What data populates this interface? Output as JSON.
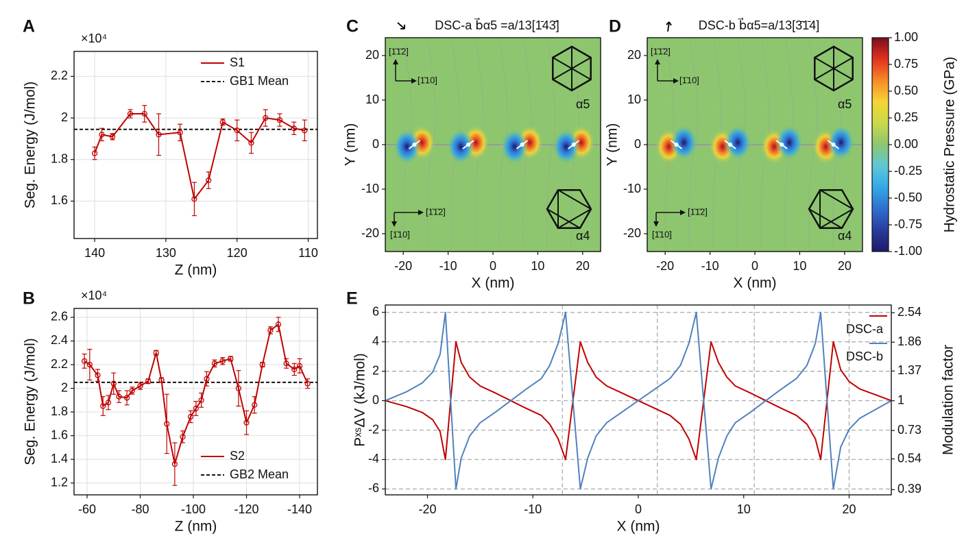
{
  "chart_data": [
    {
      "type": "errorbar_line",
      "label": "A",
      "multiplier": "×10⁴",
      "xlabel": "Z (nm)",
      "ylabel": "Seg. Energy (J/mol)",
      "x": [
        140,
        139,
        137.5,
        135,
        133,
        131,
        128,
        126,
        124,
        122,
        120,
        118,
        116,
        114,
        112,
        110.5
      ],
      "series": [
        {
          "name": "S1",
          "color": "#c00000",
          "values": [
            1.83,
            1.92,
            1.91,
            2.02,
            2.02,
            1.92,
            1.93,
            1.61,
            1.7,
            1.98,
            1.94,
            1.88,
            2.0,
            1.99,
            1.95,
            1.94
          ],
          "errors": [
            0.03,
            0.03,
            0.015,
            0.02,
            0.04,
            0.1,
            0.04,
            0.08,
            0.04,
            0.015,
            0.05,
            0.05,
            0.04,
            0.03,
            0.03,
            0.05
          ]
        }
      ],
      "reference": {
        "name": "GB1 Mean",
        "value": 1.945,
        "color": "#111111"
      },
      "xlim": [
        142.9,
        108.7
      ],
      "xticks": [
        140,
        130,
        120,
        110
      ],
      "ylim": [
        1.42,
        2.32
      ],
      "yticks": [
        1.6,
        1.8,
        2,
        2.2
      ],
      "grid": true,
      "legend": "upper right"
    },
    {
      "type": "errorbar_line",
      "label": "B",
      "multiplier": "×10⁴",
      "xlabel": "Z (nm)",
      "ylabel": "Seg. Energy (J/mol)",
      "x": [
        -59,
        -61,
        -64,
        -66,
        -68,
        -70,
        -72,
        -75,
        -77,
        -80,
        -83,
        -86,
        -88,
        -90,
        -93,
        -96,
        -99,
        -101,
        -103,
        -105,
        -108,
        -111,
        -114,
        -117,
        -120,
        -123,
        -126,
        -129,
        -132,
        -135,
        -138,
        -140,
        -143
      ],
      "series": [
        {
          "name": "S2",
          "color": "#c00000",
          "values": [
            2.23,
            2.2,
            2.11,
            1.85,
            1.88,
            2.04,
            1.93,
            1.92,
            1.98,
            2.02,
            2.06,
            2.3,
            2.07,
            1.7,
            1.36,
            1.59,
            1.76,
            1.83,
            1.9,
            2.08,
            2.21,
            2.23,
            2.25,
            2.0,
            1.71,
            1.86,
            2.2,
            2.49,
            2.54,
            2.21,
            2.16,
            2.19,
            2.04
          ],
          "errors": [
            0.06,
            0.13,
            0.05,
            0.08,
            0.06,
            0.09,
            0.05,
            0.06,
            0.03,
            0.03,
            0.02,
            0.02,
            0.02,
            0.25,
            0.18,
            0.05,
            0.05,
            0.06,
            0.06,
            0.06,
            0.03,
            0.03,
            0.02,
            0.15,
            0.1,
            0.07,
            0.02,
            0.03,
            0.06,
            0.04,
            0.05,
            0.06,
            0.04
          ]
        }
      ],
      "reference": {
        "name": "GB2 Mean",
        "value": 2.05,
        "color": "#111111"
      },
      "xlim": [
        -55.1,
        -146.7
      ],
      "xticks": [
        -60,
        -80,
        -100,
        -120,
        -140
      ],
      "ylim": [
        1.1,
        2.675
      ],
      "yticks": [
        1.2,
        1.4,
        1.6,
        1.8,
        2,
        2.2,
        2.4,
        2.6
      ],
      "grid": true,
      "legend": "lower right"
    },
    {
      "type": "contour",
      "label": "C",
      "title": "DSC-a  b⃗α5 =a/13[1̄43̄]",
      "xlabel": "X (nm)",
      "ylabel": "Y (nm)",
      "annotations": [
        "[1̄1̄2]",
        "[1̄10]",
        "[1̄1̄2]",
        "[1̄10]",
        "α5",
        "α4"
      ],
      "cores_x": [
        -17.5,
        -5.5,
        6.5,
        18
      ],
      "cores_y": [
        0,
        0,
        0,
        0
      ],
      "positive_side": "right",
      "background": "#8dc66f",
      "xlim": [
        -24,
        24
      ],
      "xticks": [
        -20,
        -10,
        0,
        10,
        20
      ],
      "ylim": [
        -24,
        24
      ],
      "yticks": [
        -20,
        -10,
        0,
        10,
        20
      ]
    },
    {
      "type": "contour",
      "label": "D",
      "title": "DSC-b  b⃗α5=a/13[3̄1̄4]",
      "xlabel": "X (nm)",
      "ylabel": "Y (nm)",
      "annotations": [
        "[1̄1̄2]",
        "[1̄10]",
        "[1̄1̄2]",
        "[1̄10]",
        "α5",
        "α4"
      ],
      "cores_x": [
        -17.5,
        -5.5,
        6,
        17.5
      ],
      "cores_y": [
        0,
        0,
        0,
        0
      ],
      "positive_side": "left",
      "background": "#8dc66f",
      "xlim": [
        -24,
        24
      ],
      "xticks": [
        -20,
        -10,
        0,
        10,
        20
      ],
      "ylim": [
        -24,
        24
      ],
      "yticks": [
        -20,
        -10,
        0,
        10,
        20
      ]
    },
    {
      "type": "colorbar",
      "ylabel": "Hydrostatic Pressure (GPa)",
      "colors": [
        "#1b1a6b",
        "#2a3c9a",
        "#2f6fcf",
        "#33a8e6",
        "#5fc7d6",
        "#8dc66f",
        "#c9d94a",
        "#f7d535",
        "#f58a2a",
        "#e2321f",
        "#7a0d1a"
      ],
      "ylim": [
        -1,
        1
      ],
      "yticks": [
        {
          "value": 1,
          "label": "1.00"
        },
        {
          "value": 0.75,
          "label": "0.75"
        },
        {
          "value": 0.5,
          "label": "0.50"
        },
        {
          "value": 0.25,
          "label": "0.25"
        },
        {
          "value": 0,
          "label": "0.00"
        },
        {
          "value": -0.25,
          "label": "-0.25"
        },
        {
          "value": -0.5,
          "label": "-0.50"
        },
        {
          "value": -0.75,
          "label": "-0.75"
        },
        {
          "value": -1,
          "label": "-1.00"
        }
      ]
    },
    {
      "type": "line",
      "label": "E",
      "xlabel": "X (nm)",
      "ylabel": "PˣˢΔV (kJ/mol)",
      "y2label": "Modulation factor",
      "x": [
        -24,
        -22,
        -20.5,
        -19.5,
        -18.8,
        -18.3,
        -17.3,
        -16.8,
        -16,
        -15,
        -13.5,
        -12.1,
        -10.7,
        -9.2,
        -8.4,
        -7.6,
        -6.9,
        -5.5,
        -4.8,
        -4,
        -3,
        -1.5,
        0,
        1.5,
        3,
        4,
        4.8,
        5.5,
        6.9,
        7.6,
        8.4,
        9.2,
        10.7,
        12.1,
        13.5,
        15,
        16,
        16.8,
        17.3,
        18.5,
        19.2,
        20,
        21,
        22.5,
        24
      ],
      "series": [
        {
          "name": "DSC-a",
          "color": "#c00000",
          "values": [
            0,
            -0.4,
            -0.8,
            -1.3,
            -2.1,
            -4,
            4,
            2.6,
            1.6,
            1.0,
            0.5,
            0,
            -0.5,
            -1.0,
            -1.6,
            -2.6,
            -4,
            4,
            2.6,
            1.6,
            1.0,
            0.5,
            0,
            -0.5,
            -1.0,
            -1.6,
            -2.6,
            -4,
            4,
            2.6,
            1.6,
            1.0,
            0.5,
            0,
            -0.5,
            -1.0,
            -1.6,
            -2.6,
            -4,
            4,
            2.1,
            1.3,
            0.8,
            0.4,
            0
          ]
        },
        {
          "name": "DSC-b",
          "color": "#4f81bd",
          "values": [
            0,
            0.6,
            1.2,
            1.95,
            3.15,
            6,
            -6,
            -3.9,
            -2.4,
            -1.5,
            -0.75,
            0,
            0.75,
            1.5,
            2.4,
            3.9,
            6,
            -6,
            -3.9,
            -2.4,
            -1.5,
            -0.75,
            0,
            0.75,
            1.5,
            2.4,
            3.9,
            6,
            -6,
            -3.9,
            -2.4,
            -1.5,
            -0.75,
            0,
            0.75,
            1.5,
            2.4,
            3.9,
            6,
            -6,
            -3.15,
            -1.95,
            -1.2,
            -0.6,
            0
          ]
        }
      ],
      "vlines": [
        -7.2,
        1.8,
        11,
        20
      ],
      "xlim": [
        -24,
        24
      ],
      "xticks": [
        -20,
        -10,
        0,
        10,
        20
      ],
      "ylim": [
        -6.4,
        6.5
      ],
      "yticks": [
        -6,
        -4,
        -2,
        0,
        2,
        4,
        6
      ],
      "y2lim": [
        0.369,
        2.757
      ],
      "y2log": true,
      "y2ticks": [
        2.54,
        1.86,
        1.37,
        1,
        0.73,
        0.54,
        0.39
      ],
      "grid": true,
      "legend": "upper right"
    }
  ]
}
